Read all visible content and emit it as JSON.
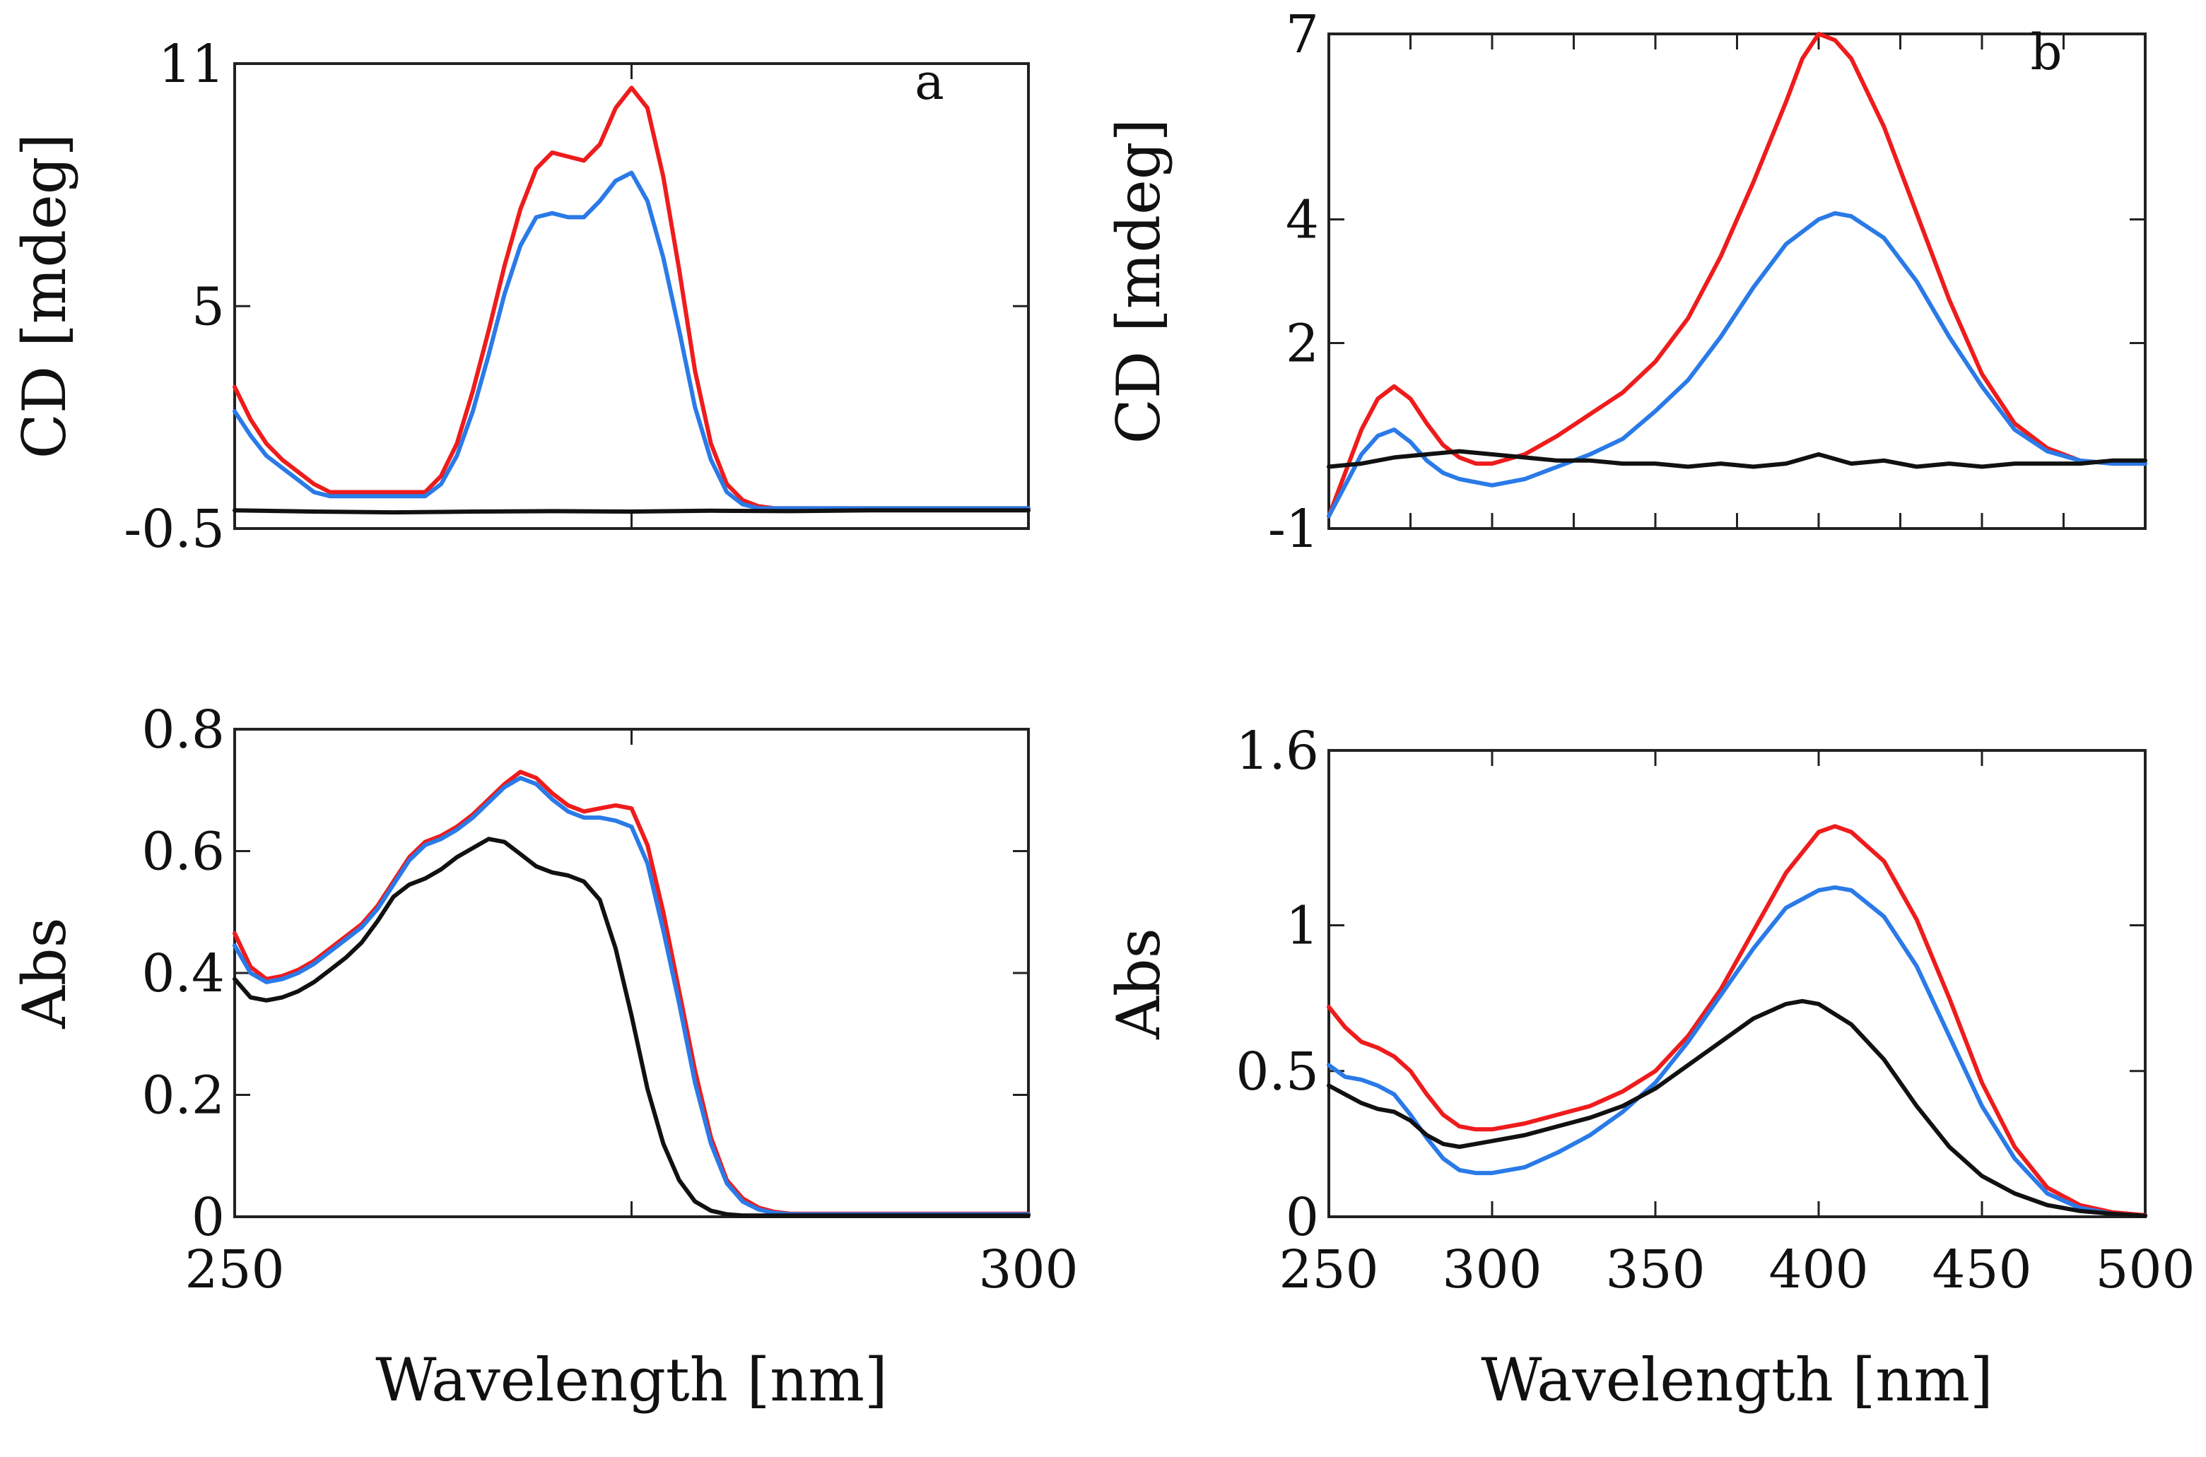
{
  "colors": {
    "red": "#ee1c1c",
    "blue": "#2a7ae8",
    "black": "#111111",
    "axis": "#222222"
  },
  "chart_data": [
    {
      "id": "cd-a",
      "type": "line",
      "panel_label": "a",
      "ylabel": "CD [mdeg]",
      "xlabel": "",
      "xlim": [
        250,
        300
      ],
      "ylim": [
        -0.5,
        11
      ],
      "yticks": [
        -0.5,
        5,
        11
      ],
      "ytick_labels": [
        "-0.5",
        "5",
        "11"
      ],
      "xticks": [
        250,
        275,
        300
      ],
      "xtick_labels": [],
      "series": [
        {
          "name": "red",
          "color": "#ee1c1c",
          "x": [
            250,
            251,
            252,
            253,
            254,
            255,
            256,
            257,
            258,
            259,
            260,
            261,
            262,
            263,
            264,
            265,
            266,
            267,
            268,
            269,
            270,
            271,
            272,
            273,
            274,
            275,
            276,
            277,
            278,
            279,
            280,
            281,
            282,
            283,
            284,
            285,
            286,
            287,
            288,
            289,
            290,
            291,
            292,
            293,
            294,
            295,
            296,
            297,
            298,
            299,
            300
          ],
          "y": [
            3.0,
            2.2,
            1.6,
            1.2,
            0.9,
            0.6,
            0.4,
            0.4,
            0.4,
            0.4,
            0.4,
            0.4,
            0.4,
            0.8,
            1.6,
            2.9,
            4.4,
            6.0,
            7.4,
            8.4,
            8.8,
            8.7,
            8.6,
            9.0,
            9.9,
            10.4,
            9.9,
            8.2,
            5.9,
            3.4,
            1.6,
            0.6,
            0.2,
            0.05,
            0.0,
            0.0,
            0.0,
            0.0,
            0.0,
            0.0,
            0.0,
            0.0,
            0.0,
            0.0,
            0.0,
            0.0,
            0.0,
            0.0,
            0.0,
            0.0,
            0.0
          ]
        },
        {
          "name": "blue",
          "color": "#2a7ae8",
          "x": [
            250,
            251,
            252,
            253,
            254,
            255,
            256,
            257,
            258,
            259,
            260,
            261,
            262,
            263,
            264,
            265,
            266,
            267,
            268,
            269,
            270,
            271,
            272,
            273,
            274,
            275,
            276,
            277,
            278,
            279,
            280,
            281,
            282,
            283,
            284,
            285,
            286,
            287,
            288,
            289,
            290,
            291,
            292,
            293,
            294,
            295,
            296,
            297,
            298,
            299,
            300
          ],
          "y": [
            2.4,
            1.8,
            1.3,
            1.0,
            0.7,
            0.4,
            0.3,
            0.3,
            0.3,
            0.3,
            0.3,
            0.3,
            0.3,
            0.6,
            1.3,
            2.4,
            3.8,
            5.3,
            6.5,
            7.2,
            7.3,
            7.2,
            7.2,
            7.6,
            8.1,
            8.3,
            7.6,
            6.2,
            4.4,
            2.5,
            1.2,
            0.4,
            0.1,
            0.0,
            0.0,
            0.0,
            0.0,
            0.0,
            0.0,
            0.0,
            0.0,
            0.0,
            0.0,
            0.0,
            0.0,
            0.0,
            0.0,
            0.0,
            0.0,
            0.0,
            0.0
          ]
        },
        {
          "name": "black",
          "color": "#111111",
          "x": [
            250,
            255,
            260,
            265,
            270,
            275,
            280,
            285,
            290,
            295,
            300
          ],
          "y": [
            -0.05,
            -0.08,
            -0.1,
            -0.08,
            -0.07,
            -0.08,
            -0.06,
            -0.07,
            -0.05,
            -0.05,
            -0.05
          ]
        }
      ]
    },
    {
      "id": "cd-b",
      "type": "line",
      "panel_label": "b",
      "ylabel": "CD [mdeg]",
      "xlabel": "",
      "xlim": [
        250,
        500
      ],
      "ylim": [
        -1,
        7
      ],
      "yticks": [
        -1,
        2,
        4,
        7
      ],
      "ytick_labels": [
        "-1",
        "2",
        "4",
        "7"
      ],
      "xticks": [
        250,
        275,
        300,
        325,
        350,
        375,
        400,
        425,
        450,
        475,
        500
      ],
      "xtick_labels": [],
      "series": [
        {
          "name": "red",
          "color": "#ee1c1c",
          "x": [
            250,
            255,
            260,
            265,
            270,
            275,
            280,
            285,
            290,
            295,
            300,
            310,
            320,
            330,
            340,
            350,
            360,
            370,
            380,
            390,
            395,
            400,
            405,
            410,
            420,
            430,
            440,
            450,
            460,
            470,
            480,
            490,
            500
          ],
          "y": [
            -0.8,
            -0.1,
            0.6,
            1.1,
            1.3,
            1.1,
            0.7,
            0.35,
            0.15,
            0.05,
            0.05,
            0.2,
            0.5,
            0.85,
            1.2,
            1.7,
            2.4,
            3.4,
            4.6,
            5.9,
            6.6,
            7.0,
            6.9,
            6.6,
            5.5,
            4.1,
            2.7,
            1.5,
            0.7,
            0.3,
            0.1,
            0.05,
            0.05
          ]
        },
        {
          "name": "blue",
          "color": "#2a7ae8",
          "x": [
            250,
            255,
            260,
            265,
            270,
            275,
            280,
            285,
            290,
            295,
            300,
            310,
            320,
            330,
            340,
            350,
            360,
            370,
            380,
            390,
            400,
            405,
            410,
            420,
            430,
            440,
            450,
            460,
            470,
            480,
            490,
            500
          ],
          "y": [
            -0.8,
            -0.3,
            0.2,
            0.5,
            0.6,
            0.4,
            0.1,
            -0.1,
            -0.2,
            -0.25,
            -0.3,
            -0.2,
            0.0,
            0.2,
            0.45,
            0.9,
            1.4,
            2.1,
            2.9,
            3.6,
            4.0,
            4.1,
            4.05,
            3.7,
            3.0,
            2.1,
            1.3,
            0.6,
            0.25,
            0.1,
            0.05,
            0.05
          ]
        },
        {
          "name": "black",
          "color": "#111111",
          "x": [
            250,
            260,
            270,
            280,
            290,
            300,
            310,
            320,
            330,
            340,
            350,
            360,
            370,
            380,
            390,
            400,
            410,
            420,
            430,
            440,
            450,
            460,
            470,
            480,
            490,
            500
          ],
          "y": [
            0.0,
            0.05,
            0.15,
            0.2,
            0.25,
            0.2,
            0.15,
            0.1,
            0.1,
            0.05,
            0.05,
            0.0,
            0.05,
            0.0,
            0.05,
            0.2,
            0.05,
            0.1,
            0.0,
            0.05,
            0.0,
            0.05,
            0.05,
            0.05,
            0.1,
            0.1
          ]
        }
      ]
    },
    {
      "id": "abs-a",
      "type": "line",
      "panel_label": "",
      "ylabel": "Abs",
      "xlabel": "Wavelength [nm]",
      "xlim": [
        250,
        300
      ],
      "ylim": [
        0,
        0.8
      ],
      "yticks": [
        0,
        0.2,
        0.4,
        0.6,
        0.8
      ],
      "ytick_labels": [
        "0",
        "0.2",
        "0.4",
        "0.6",
        "0.8"
      ],
      "xticks": [
        250,
        275,
        300
      ],
      "xtick_labels": [
        "250",
        "",
        "300"
      ],
      "series": [
        {
          "name": "red",
          "color": "#ee1c1c",
          "x": [
            250,
            251,
            252,
            253,
            254,
            255,
            256,
            257,
            258,
            259,
            260,
            261,
            262,
            263,
            264,
            265,
            266,
            267,
            268,
            269,
            270,
            271,
            272,
            273,
            274,
            275,
            276,
            277,
            278,
            279,
            280,
            281,
            282,
            283,
            284,
            285,
            286,
            287,
            288,
            289,
            290,
            291,
            292,
            293,
            294,
            295,
            296,
            297,
            298,
            299,
            300
          ],
          "y": [
            0.465,
            0.41,
            0.39,
            0.395,
            0.405,
            0.42,
            0.44,
            0.46,
            0.48,
            0.51,
            0.55,
            0.59,
            0.615,
            0.625,
            0.64,
            0.66,
            0.685,
            0.71,
            0.73,
            0.72,
            0.695,
            0.675,
            0.665,
            0.67,
            0.675,
            0.67,
            0.61,
            0.5,
            0.37,
            0.24,
            0.13,
            0.06,
            0.03,
            0.015,
            0.008,
            0.005,
            0.005,
            0.005,
            0.005,
            0.005,
            0.005,
            0.005,
            0.005,
            0.005,
            0.005,
            0.005,
            0.005,
            0.005,
            0.005,
            0.005,
            0.005
          ]
        },
        {
          "name": "blue",
          "color": "#2a7ae8",
          "x": [
            250,
            251,
            252,
            253,
            254,
            255,
            256,
            257,
            258,
            259,
            260,
            261,
            262,
            263,
            264,
            265,
            266,
            267,
            268,
            269,
            270,
            271,
            272,
            273,
            274,
            275,
            276,
            277,
            278,
            279,
            280,
            281,
            282,
            283,
            284,
            285,
            286,
            287,
            288,
            289,
            290,
            291,
            292,
            293,
            294,
            295,
            296,
            297,
            298,
            299,
            300
          ],
          "y": [
            0.445,
            0.4,
            0.385,
            0.39,
            0.4,
            0.415,
            0.435,
            0.455,
            0.475,
            0.505,
            0.545,
            0.585,
            0.61,
            0.62,
            0.635,
            0.655,
            0.68,
            0.705,
            0.72,
            0.71,
            0.685,
            0.665,
            0.655,
            0.655,
            0.65,
            0.64,
            0.58,
            0.47,
            0.35,
            0.22,
            0.12,
            0.055,
            0.025,
            0.012,
            0.006,
            0.004,
            0.004,
            0.004,
            0.004,
            0.004,
            0.004,
            0.004,
            0.004,
            0.004,
            0.004,
            0.004,
            0.004,
            0.004,
            0.004,
            0.004,
            0.004
          ]
        },
        {
          "name": "black",
          "color": "#111111",
          "x": [
            250,
            251,
            252,
            253,
            254,
            255,
            256,
            257,
            258,
            259,
            260,
            261,
            262,
            263,
            264,
            265,
            266,
            267,
            268,
            269,
            270,
            271,
            272,
            273,
            274,
            275,
            276,
            277,
            278,
            279,
            280,
            281,
            282,
            283,
            284,
            285,
            286,
            287,
            288,
            289,
            290,
            291,
            292,
            293,
            294,
            295,
            296,
            297,
            298,
            299,
            300
          ],
          "y": [
            0.39,
            0.36,
            0.355,
            0.36,
            0.37,
            0.385,
            0.405,
            0.425,
            0.45,
            0.485,
            0.525,
            0.545,
            0.555,
            0.57,
            0.59,
            0.605,
            0.62,
            0.615,
            0.595,
            0.575,
            0.565,
            0.56,
            0.55,
            0.52,
            0.44,
            0.33,
            0.21,
            0.12,
            0.06,
            0.025,
            0.01,
            0.004,
            0.002,
            0.002,
            0.002,
            0.002,
            0.002,
            0.002,
            0.002,
            0.002,
            0.002,
            0.002,
            0.002,
            0.002,
            0.002,
            0.002,
            0.002,
            0.002,
            0.002,
            0.002,
            0.002
          ]
        }
      ]
    },
    {
      "id": "abs-b",
      "type": "line",
      "panel_label": "",
      "ylabel": "Abs",
      "xlabel": "Wavelength [nm]",
      "xlim": [
        250,
        500
      ],
      "ylim": [
        0,
        1.6
      ],
      "yticks": [
        0,
        0.5,
        1,
        1.6
      ],
      "ytick_labels": [
        "0",
        "0.5",
        "1",
        "1.6"
      ],
      "xticks": [
        250,
        300,
        350,
        400,
        450,
        500
      ],
      "xtick_labels": [
        "250",
        "300",
        "350",
        "400",
        "450",
        "500"
      ],
      "series": [
        {
          "name": "red",
          "color": "#ee1c1c",
          "x": [
            250,
            255,
            260,
            265,
            270,
            275,
            280,
            285,
            290,
            295,
            300,
            310,
            320,
            330,
            340,
            350,
            360,
            370,
            380,
            390,
            400,
            405,
            410,
            420,
            430,
            440,
            450,
            460,
            470,
            480,
            490,
            500
          ],
          "y": [
            0.72,
            0.65,
            0.6,
            0.58,
            0.55,
            0.5,
            0.42,
            0.35,
            0.31,
            0.3,
            0.3,
            0.32,
            0.35,
            0.38,
            0.43,
            0.5,
            0.62,
            0.78,
            0.98,
            1.18,
            1.32,
            1.34,
            1.32,
            1.22,
            1.02,
            0.75,
            0.46,
            0.24,
            0.1,
            0.04,
            0.015,
            0.005
          ]
        },
        {
          "name": "blue",
          "color": "#2a7ae8",
          "x": [
            250,
            255,
            260,
            265,
            270,
            275,
            280,
            285,
            290,
            295,
            300,
            310,
            320,
            330,
            340,
            350,
            360,
            370,
            380,
            390,
            400,
            405,
            410,
            420,
            430,
            440,
            450,
            460,
            470,
            480,
            490,
            500
          ],
          "y": [
            0.52,
            0.48,
            0.47,
            0.45,
            0.42,
            0.35,
            0.27,
            0.2,
            0.16,
            0.15,
            0.15,
            0.17,
            0.22,
            0.28,
            0.36,
            0.46,
            0.6,
            0.76,
            0.92,
            1.06,
            1.12,
            1.13,
            1.12,
            1.03,
            0.86,
            0.62,
            0.38,
            0.2,
            0.08,
            0.03,
            0.01,
            0.003
          ]
        },
        {
          "name": "black",
          "color": "#111111",
          "x": [
            250,
            255,
            260,
            265,
            270,
            275,
            280,
            285,
            290,
            295,
            300,
            310,
            320,
            330,
            340,
            350,
            360,
            370,
            380,
            390,
            395,
            400,
            410,
            420,
            430,
            440,
            450,
            460,
            470,
            480,
            490,
            500
          ],
          "y": [
            0.45,
            0.42,
            0.39,
            0.37,
            0.36,
            0.33,
            0.28,
            0.25,
            0.24,
            0.25,
            0.26,
            0.28,
            0.31,
            0.34,
            0.38,
            0.44,
            0.52,
            0.6,
            0.68,
            0.73,
            0.74,
            0.73,
            0.66,
            0.54,
            0.38,
            0.24,
            0.14,
            0.08,
            0.04,
            0.02,
            0.01,
            0.003
          ]
        }
      ]
    }
  ]
}
